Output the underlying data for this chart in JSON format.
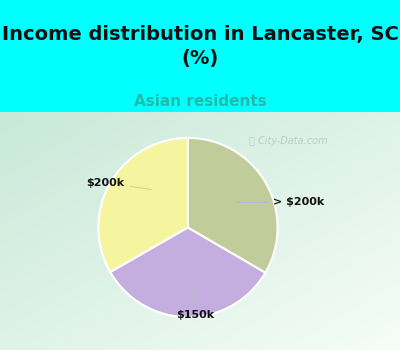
{
  "title": "Income distribution in Lancaster, SC\n(%)",
  "subtitle": "Asian residents",
  "slices": [
    {
      "label": "$200k",
      "value": 33.3,
      "color": "#f5f5a0"
    },
    {
      "label": "> $200k",
      "value": 33.3,
      "color": "#c4aee0"
    },
    {
      "label": "$150k",
      "value": 33.4,
      "color": "#c0cc9a"
    }
  ],
  "title_color": "#111111",
  "subtitle_color": "#22bbaa",
  "title_fontsize": 14,
  "subtitle_fontsize": 11,
  "bg_top_color": "#00ffff",
  "chart_bg_color_tl": "#c8e8d8",
  "chart_bg_color_br": "#f5fdf8",
  "watermark_text": "City-Data.com",
  "watermark_color": "#b0c8c0",
  "start_angle": 90,
  "label_fontsize": 8,
  "label_color": "#111111"
}
